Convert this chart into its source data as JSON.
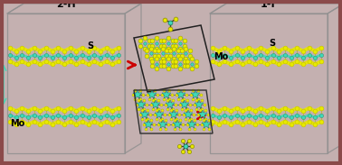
{
  "bg_color": "#c4b0b0",
  "border_color": "#8b4a4a",
  "title_2h": "2-H",
  "title_1t": "1-T",
  "label_s": "S",
  "label_mo": "Mo",
  "label_d": "d",
  "yellow": "#e8e800",
  "cyan": "#40d8b8",
  "dark_gray": "#303030",
  "red_arrow": "#cc0000",
  "box_line": "#909090",
  "figsize": [
    3.78,
    1.83
  ],
  "dpi": 100
}
